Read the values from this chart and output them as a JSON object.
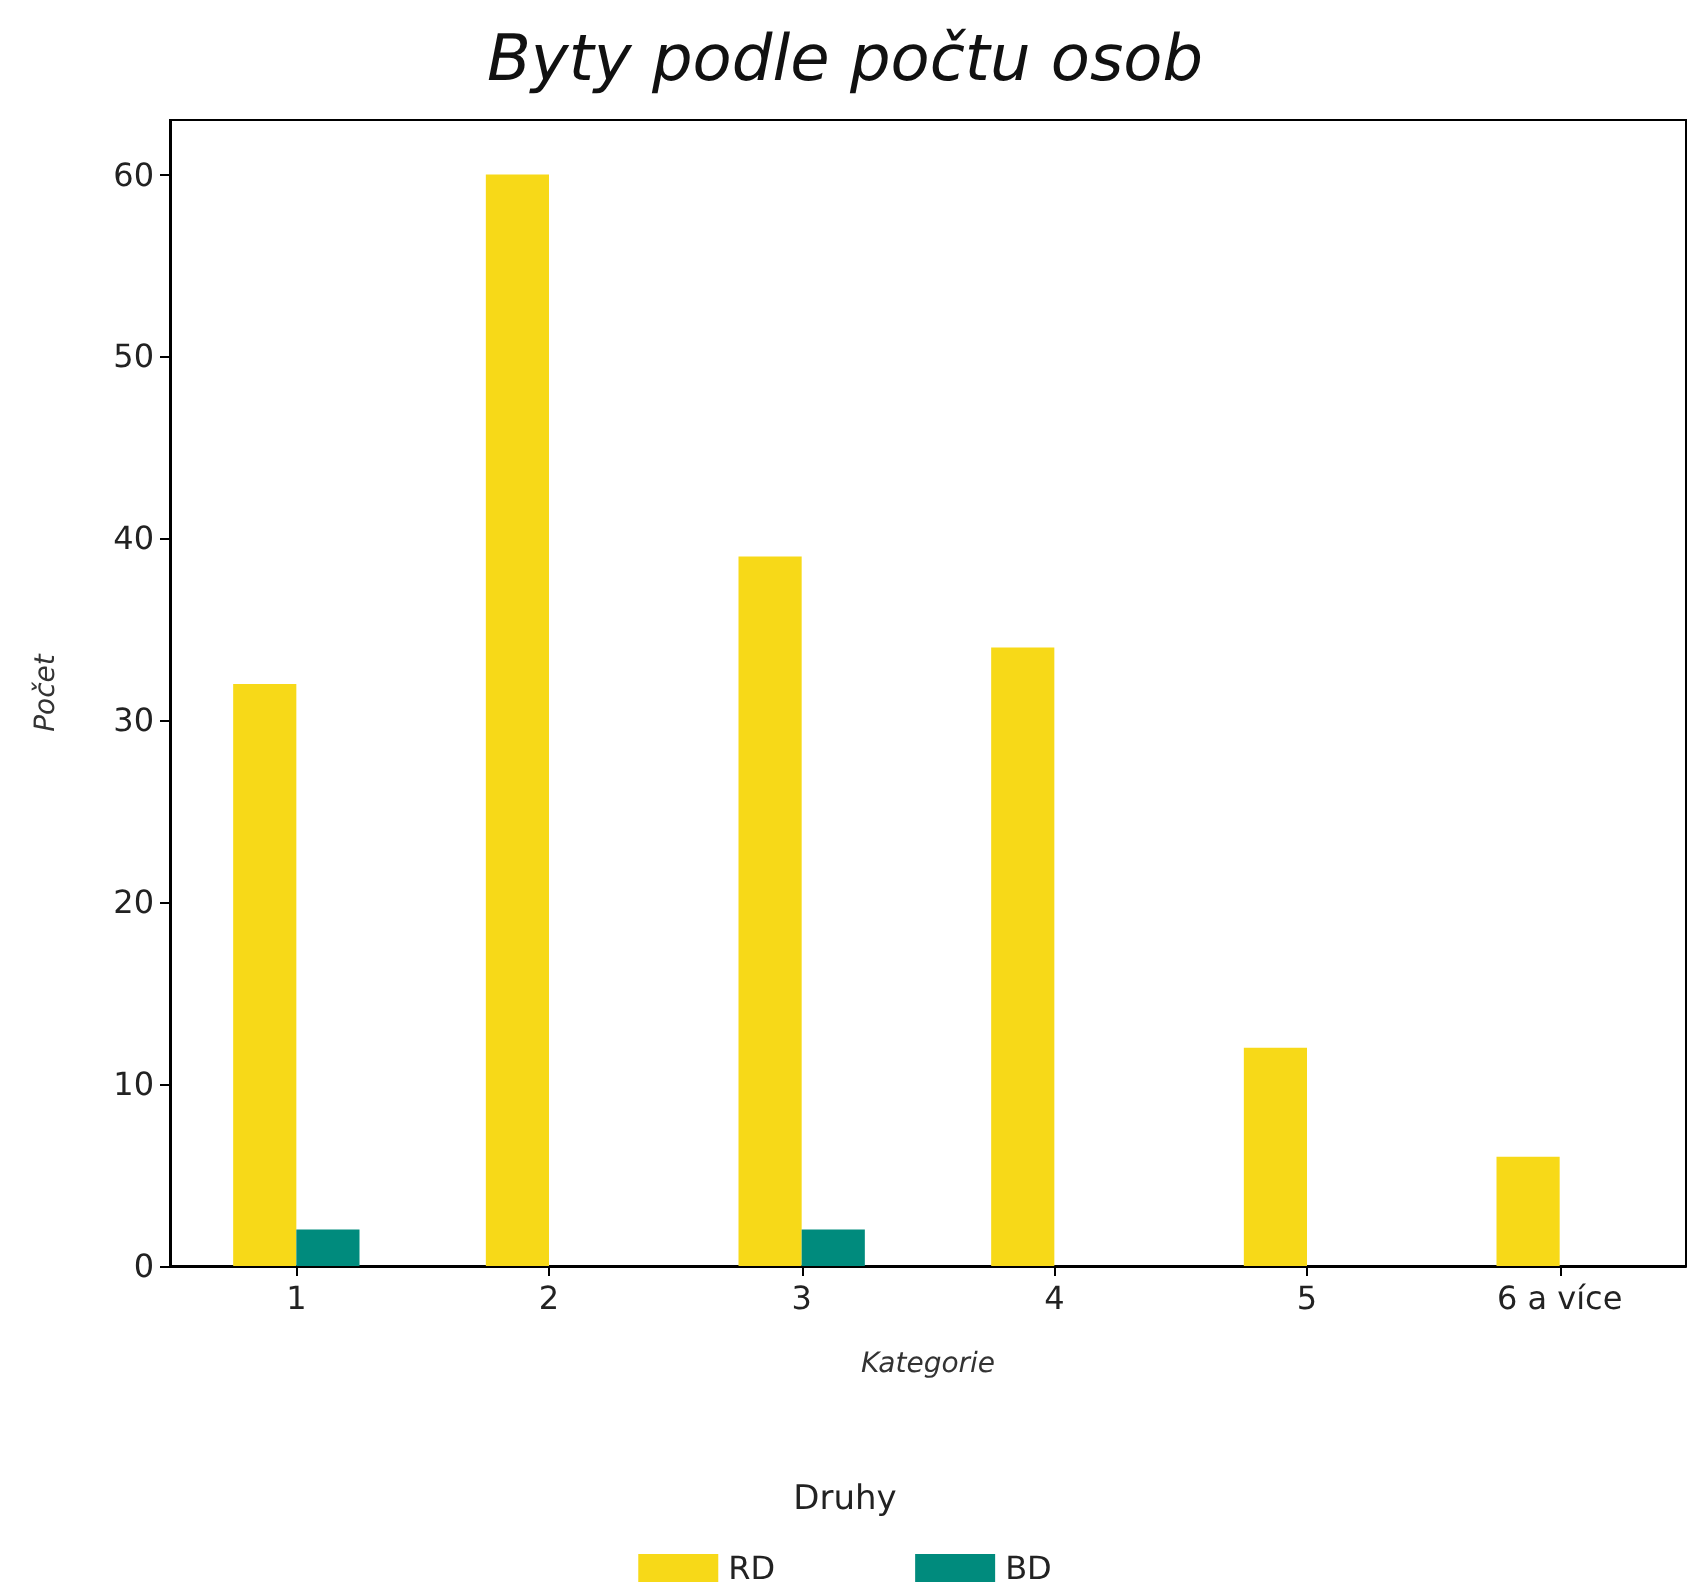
{
  "chart_data": {
    "type": "bar",
    "title": "Byty podle počtu osob",
    "xlabel": "Kategorie",
    "ylabel": "Počet",
    "legend_title": "Druhy",
    "categories": [
      "1",
      "2",
      "3",
      "4",
      "5",
      "6 a více"
    ],
    "series": [
      {
        "name": "RD",
        "color": "#f7d918",
        "values": [
          32,
          60,
          39,
          34,
          12,
          6
        ]
      },
      {
        "name": "BD",
        "color": "#008b7d",
        "values": [
          2,
          0,
          2,
          0,
          0,
          0
        ]
      }
    ],
    "ylim": [
      0,
      63
    ],
    "yticks": [
      0,
      10,
      20,
      30,
      40,
      50,
      60
    ],
    "grid": false,
    "legend": "bottom"
  }
}
